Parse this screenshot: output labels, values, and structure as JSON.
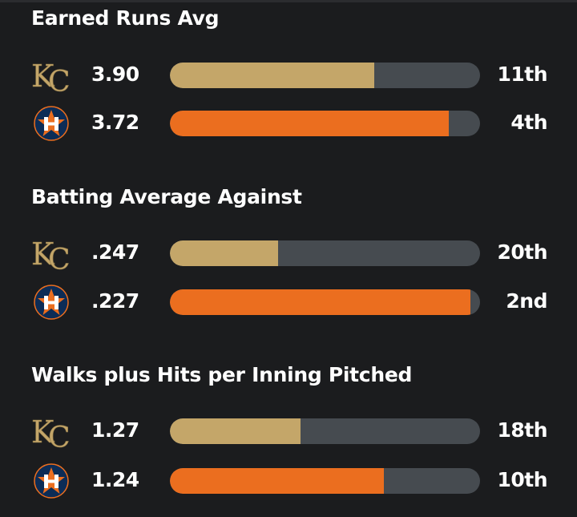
{
  "colors": {
    "background": "#1b1c1e",
    "track": "#464b50",
    "royals": "#c4a669",
    "astros": "#eb6e1f"
  },
  "stats": [
    {
      "title": "Earned Runs Avg",
      "rows": [
        {
          "team_icon": "royals-kc-logo-icon",
          "value": "3.90",
          "fill_percent": 66,
          "rank": "11th"
        },
        {
          "team_icon": "astros-h-star-logo-icon",
          "value": "3.72",
          "fill_percent": 90,
          "rank": "4th"
        }
      ]
    },
    {
      "title": "Batting Average Against",
      "rows": [
        {
          "team_icon": "royals-kc-logo-icon",
          "value": ".247",
          "fill_percent": 35,
          "rank": "20th"
        },
        {
          "team_icon": "astros-h-star-logo-icon",
          "value": ".227",
          "fill_percent": 97,
          "rank": "2nd"
        }
      ]
    },
    {
      "title": "Walks plus Hits per Inning Pitched",
      "rows": [
        {
          "team_icon": "royals-kc-logo-icon",
          "value": "1.27",
          "fill_percent": 42,
          "rank": "18th"
        },
        {
          "team_icon": "astros-h-star-logo-icon",
          "value": "1.24",
          "fill_percent": 69,
          "rank": "10th"
        }
      ]
    }
  ]
}
